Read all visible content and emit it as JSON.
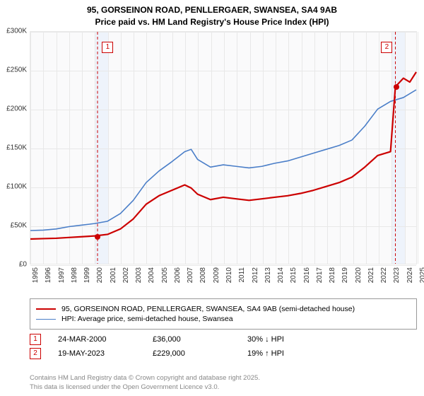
{
  "title": {
    "line1": "95, GORSEINON ROAD, PENLLERGAER, SWANSEA, SA4 9AB",
    "line2": "Price paid vs. HM Land Registry's House Price Index (HPI)",
    "fontsize": 12
  },
  "chart": {
    "type": "line",
    "background_color": "#fafafb",
    "grid_color": "#e8e8e8",
    "highlight_band_color": "#eef3fb",
    "ylim": [
      0,
      300000
    ],
    "ytick_step": 50000,
    "yticks": [
      "£0",
      "£50K",
      "£100K",
      "£150K",
      "£200K",
      "£250K",
      "£300K"
    ],
    "xlim": [
      1995,
      2025
    ],
    "xticks": [
      1995,
      1996,
      1997,
      1998,
      1999,
      2000,
      2001,
      2002,
      2003,
      2004,
      2005,
      2006,
      2007,
      2008,
      2009,
      2010,
      2011,
      2012,
      2013,
      2014,
      2015,
      2016,
      2017,
      2018,
      2019,
      2020,
      2021,
      2022,
      2023,
      2024,
      2025
    ],
    "label_fontsize": 10,
    "highlight_bands": [
      {
        "start": 2000,
        "end": 2001
      },
      {
        "start": 2023,
        "end": 2024
      }
    ],
    "series": [
      {
        "id": "property",
        "label": "95, GORSEINON ROAD, PENLLERGAER, SWANSEA, SA4 9AB (semi-detached house)",
        "color": "#cc0000",
        "width": 2.2,
        "data": [
          [
            1995,
            32000
          ],
          [
            1996,
            32500
          ],
          [
            1997,
            33000
          ],
          [
            1998,
            34000
          ],
          [
            1999,
            35000
          ],
          [
            2000,
            36000
          ],
          [
            2001,
            38000
          ],
          [
            2002,
            45000
          ],
          [
            2003,
            58000
          ],
          [
            2004,
            77000
          ],
          [
            2005,
            88000
          ],
          [
            2006,
            95000
          ],
          [
            2007,
            102000
          ],
          [
            2007.5,
            98000
          ],
          [
            2008,
            90000
          ],
          [
            2009,
            83000
          ],
          [
            2010,
            86000
          ],
          [
            2011,
            84000
          ],
          [
            2012,
            82000
          ],
          [
            2013,
            84000
          ],
          [
            2014,
            86000
          ],
          [
            2015,
            88000
          ],
          [
            2016,
            91000
          ],
          [
            2017,
            95000
          ],
          [
            2018,
            100000
          ],
          [
            2019,
            105000
          ],
          [
            2020,
            112000
          ],
          [
            2021,
            125000
          ],
          [
            2022,
            140000
          ],
          [
            2023,
            145000
          ],
          [
            2023.38,
            229000
          ],
          [
            2024,
            240000
          ],
          [
            2024.5,
            235000
          ],
          [
            2025,
            248000
          ]
        ]
      },
      {
        "id": "hpi",
        "label": "HPI: Average price, semi-detached house, Swansea",
        "color": "#4a7ec8",
        "width": 1.6,
        "data": [
          [
            1995,
            43000
          ],
          [
            1996,
            43500
          ],
          [
            1997,
            45000
          ],
          [
            1998,
            48000
          ],
          [
            1999,
            50000
          ],
          [
            2000,
            52000
          ],
          [
            2001,
            55000
          ],
          [
            2002,
            65000
          ],
          [
            2003,
            82000
          ],
          [
            2004,
            105000
          ],
          [
            2005,
            120000
          ],
          [
            2006,
            132000
          ],
          [
            2007,
            145000
          ],
          [
            2007.5,
            148000
          ],
          [
            2008,
            135000
          ],
          [
            2009,
            125000
          ],
          [
            2010,
            128000
          ],
          [
            2011,
            126000
          ],
          [
            2012,
            124000
          ],
          [
            2013,
            126000
          ],
          [
            2014,
            130000
          ],
          [
            2015,
            133000
          ],
          [
            2016,
            138000
          ],
          [
            2017,
            143000
          ],
          [
            2018,
            148000
          ],
          [
            2019,
            153000
          ],
          [
            2020,
            160000
          ],
          [
            2021,
            178000
          ],
          [
            2022,
            200000
          ],
          [
            2023,
            210000
          ],
          [
            2024,
            215000
          ],
          [
            2025,
            225000
          ]
        ]
      }
    ],
    "markers": [
      {
        "n": "1",
        "x": 2000.22,
        "color": "#cc0000",
        "dash": "4,3"
      },
      {
        "n": "2",
        "x": 2023.38,
        "color": "#cc0000",
        "dash": "4,3"
      }
    ],
    "points": [
      {
        "x": 2000.22,
        "y": 36000,
        "color": "#cc0000"
      },
      {
        "x": 2023.38,
        "y": 229000,
        "color": "#cc0000"
      }
    ]
  },
  "legend": {
    "items": [
      {
        "color": "#cc0000",
        "width": 2.2,
        "label": "95, GORSEINON ROAD, PENLLERGAER, SWANSEA, SA4 9AB (semi-detached house)"
      },
      {
        "color": "#4a7ec8",
        "width": 1.6,
        "label": "HPI: Average price, semi-detached house, Swansea"
      }
    ]
  },
  "info": [
    {
      "n": "1",
      "color": "#cc0000",
      "date": "24-MAR-2000",
      "price": "£36,000",
      "delta": "30% ↓ HPI"
    },
    {
      "n": "2",
      "color": "#cc0000",
      "date": "19-MAY-2023",
      "price": "£229,000",
      "delta": "19% ↑ HPI"
    }
  ],
  "footer": {
    "line1": "Contains HM Land Registry data © Crown copyright and database right 2025.",
    "line2": "This data is licensed under the Open Government Licence v3.0."
  }
}
